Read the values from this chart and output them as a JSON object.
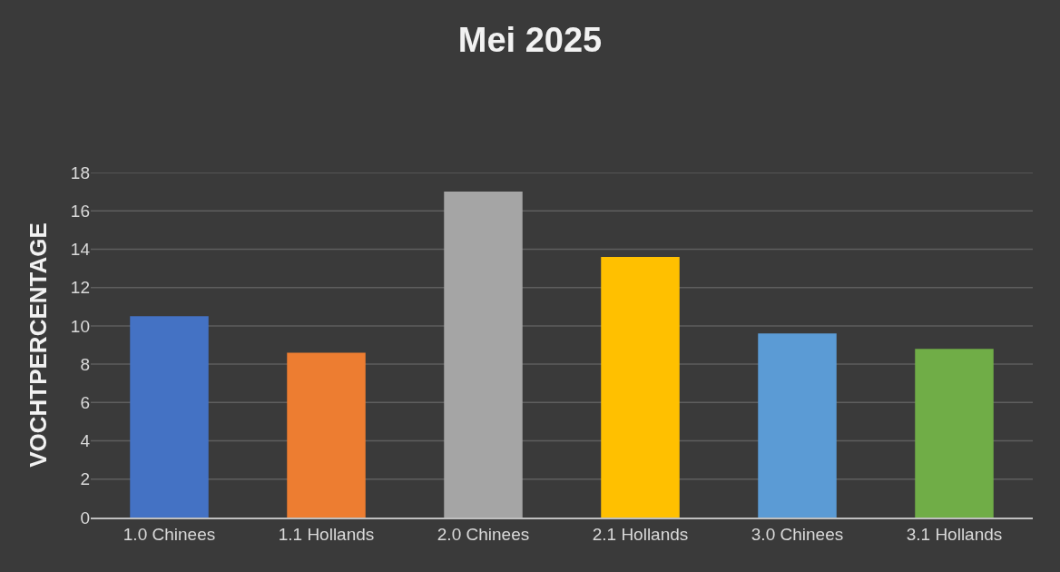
{
  "chart_data": {
    "type": "bar",
    "title": "Mei 2025",
    "ylabel": "VOCHTPERCENTAGE",
    "categories": [
      "1.0 Chinees",
      "1.1 Hollands",
      "2.0 Chinees",
      "2.1 Hollands",
      "3.0 Chinees",
      "3.1 Hollands"
    ],
    "values": [
      10.5,
      8.6,
      17.0,
      13.6,
      9.6,
      8.8
    ],
    "colors": [
      "#4472c4",
      "#ed7d31",
      "#a5a5a5",
      "#ffc000",
      "#5b9bd5",
      "#70ad47"
    ],
    "ylim": [
      0,
      18
    ],
    "yticks": [
      0,
      2,
      4,
      6,
      8,
      10,
      12,
      14,
      16,
      18
    ],
    "grid": "y"
  }
}
